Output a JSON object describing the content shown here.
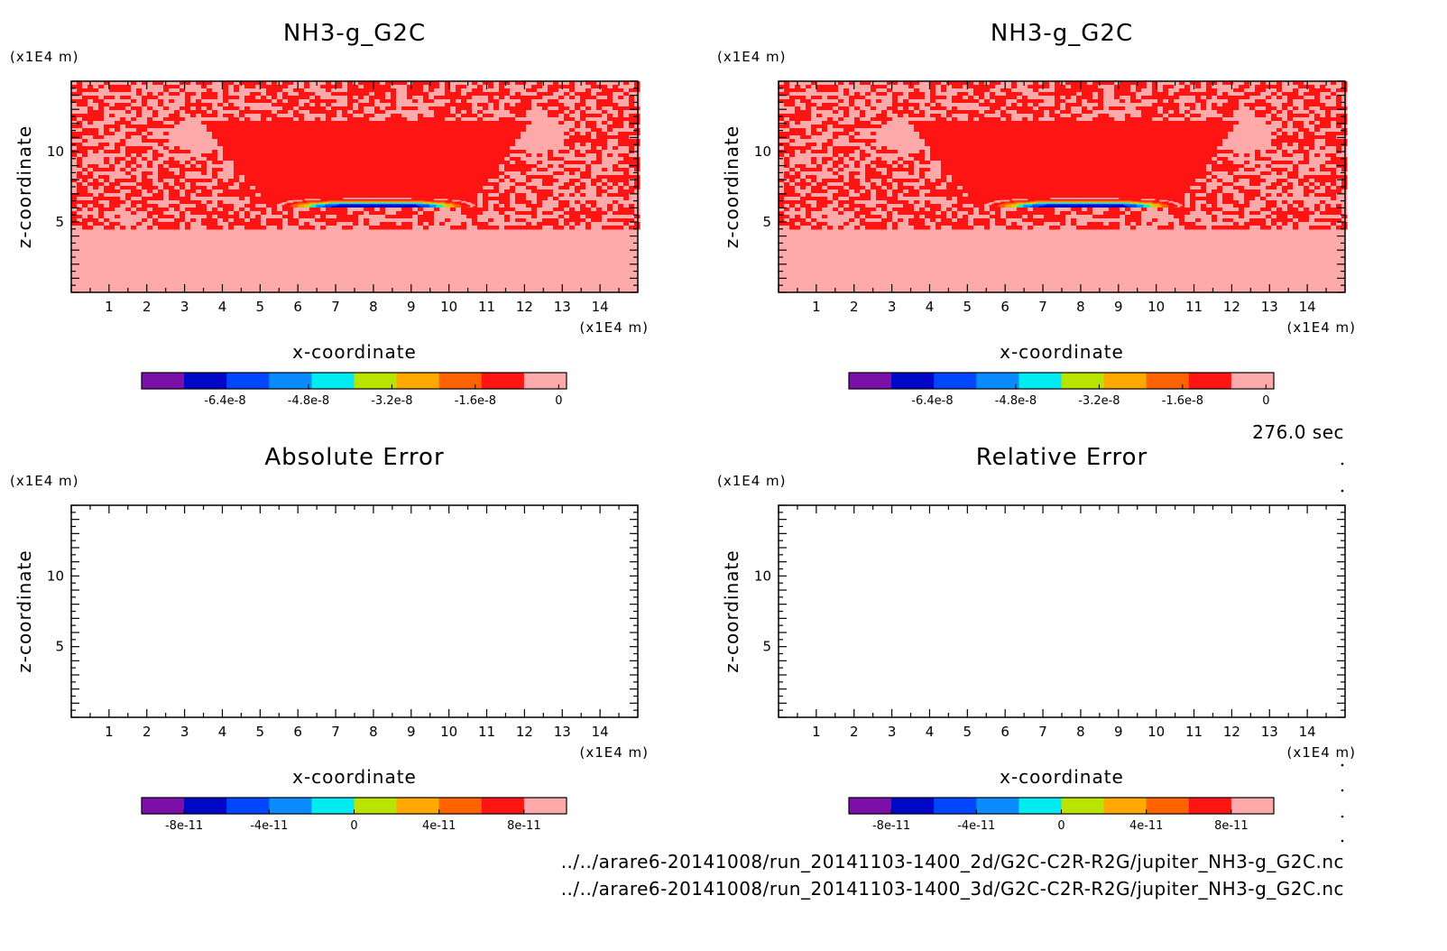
{
  "chart_data": [
    {
      "type": "heatmap",
      "title": "NH3-g_G2C",
      "xlabel": "x-coordinate",
      "ylabel": "z-coordinate",
      "x_unit": "(x1E4 m)",
      "y_unit": "(x1E4 m)",
      "xlim": [
        0,
        15
      ],
      "ylim": [
        0,
        15
      ],
      "xticks": [
        "1",
        "2",
        "3",
        "4",
        "5",
        "6",
        "7",
        "8",
        "9",
        "10",
        "11",
        "12",
        "13",
        "14"
      ],
      "yticks": [
        "5",
        "10"
      ],
      "colorbar": {
        "ticks": [
          "-6.4e-8",
          "-4.8e-8",
          "-3.2e-8",
          "-1.6e-8",
          "0"
        ],
        "tick_values": [
          -6.4e-08,
          -4.8e-08,
          -3.2e-08,
          -1.6e-08,
          0
        ],
        "range": [
          -8e-08,
          1.5e-09
        ],
        "colors": [
          "#7b0fa8",
          "#0008c8",
          "#0047ff",
          "#0a8cff",
          "#00ecf2",
          "#b8e400",
          "#ffa800",
          "#ff6200",
          "#ff1414",
          "#ffaaaa"
        ]
      },
      "field": "NH3 gas concentration; mostly near 0 with minimum about -7e-8 near x=6-9, z=6"
    },
    {
      "type": "heatmap",
      "title": "NH3-g_G2C",
      "xlabel": "x-coordinate",
      "ylabel": "z-coordinate",
      "x_unit": "(x1E4 m)",
      "y_unit": "(x1E4 m)",
      "xlim": [
        0,
        15
      ],
      "ylim": [
        0,
        15
      ],
      "xticks": [
        "1",
        "2",
        "3",
        "4",
        "5",
        "6",
        "7",
        "8",
        "9",
        "10",
        "11",
        "12",
        "13",
        "14"
      ],
      "yticks": [
        "5",
        "10"
      ],
      "colorbar": {
        "ticks": [
          "-6.4e-8",
          "-4.8e-8",
          "-3.2e-8",
          "-1.6e-8",
          "0"
        ],
        "tick_values": [
          -6.4e-08,
          -4.8e-08,
          -3.2e-08,
          -1.6e-08,
          0
        ],
        "range": [
          -8e-08,
          1.5e-09
        ],
        "colors": [
          "#7b0fa8",
          "#0008c8",
          "#0047ff",
          "#0a8cff",
          "#00ecf2",
          "#b8e400",
          "#ffa800",
          "#ff6200",
          "#ff1414",
          "#ffaaaa"
        ]
      },
      "field": "NH3 gas concentration; mostly near 0 with minimum about -7e-8 near x=6-9, z=6"
    },
    {
      "type": "heatmap",
      "title": "Absolute Error",
      "xlabel": "x-coordinate",
      "ylabel": "z-coordinate",
      "x_unit": "(x1E4 m)",
      "y_unit": "(x1E4 m)",
      "xlim": [
        0,
        15
      ],
      "ylim": [
        0,
        15
      ],
      "xticks": [
        "1",
        "2",
        "3",
        "4",
        "5",
        "6",
        "7",
        "8",
        "9",
        "10",
        "11",
        "12",
        "13",
        "14"
      ],
      "yticks": [
        "5",
        "10"
      ],
      "colorbar": {
        "ticks": [
          "-8e-11",
          "-4e-11",
          "0",
          "4e-11",
          "8e-11"
        ],
        "tick_values": [
          -8e-11,
          -4e-11,
          0,
          4e-11,
          8e-11
        ],
        "range": [
          -1e-10,
          1e-10
        ],
        "colors": [
          "#7b0fa8",
          "#0008c8",
          "#0047ff",
          "#0a8cff",
          "#00ecf2",
          "#b8e400",
          "#ffa800",
          "#ff6200",
          "#ff1414",
          "#ffaaaa"
        ]
      },
      "field": "empty (zero error)"
    },
    {
      "type": "heatmap",
      "title": "Relative Error",
      "xlabel": "x-coordinate",
      "ylabel": "z-coordinate",
      "x_unit": "(x1E4 m)",
      "y_unit": "(x1E4 m)",
      "xlim": [
        0,
        15
      ],
      "ylim": [
        0,
        15
      ],
      "xticks": [
        "1",
        "2",
        "3",
        "4",
        "5",
        "6",
        "7",
        "8",
        "9",
        "10",
        "11",
        "12",
        "13",
        "14"
      ],
      "yticks": [
        "5",
        "10"
      ],
      "colorbar": {
        "ticks": [
          "-8e-11",
          "-4e-11",
          "0",
          "4e-11",
          "8e-11"
        ],
        "tick_values": [
          -8e-11,
          -4e-11,
          0,
          4e-11,
          8e-11
        ],
        "range": [
          -1e-10,
          1e-10
        ],
        "colors": [
          "#7b0fa8",
          "#0008c8",
          "#0047ff",
          "#0a8cff",
          "#00ecf2",
          "#b8e400",
          "#ffa800",
          "#ff6200",
          "#ff1414",
          "#ffaaaa"
        ]
      },
      "field": "empty (zero error)"
    }
  ],
  "time_label": "276.0 sec",
  "file_paths": [
    "../../arare6-20141008/run_20141103-1400_2d/G2C-C2R-R2G/jupiter_NH3-g_G2C.nc",
    "../../arare6-20141008/run_20141103-1400_3d/G2C-C2R-R2G/jupiter_NH3-g_G2C.nc"
  ]
}
